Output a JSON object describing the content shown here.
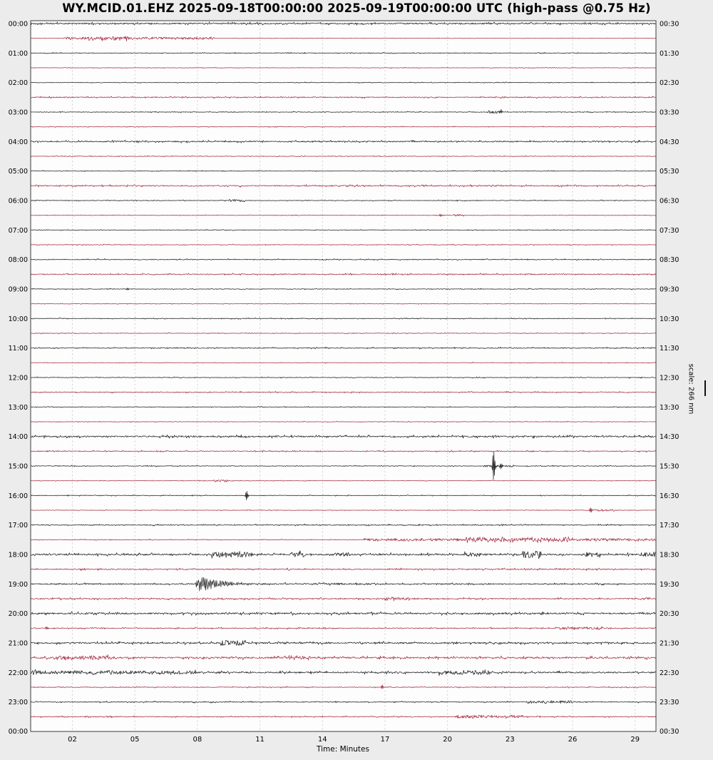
{
  "title": "WY.MCID.01.EHZ 2025-09-18T00:00:00 2025-09-19T00:00:00 UTC (high-pass @0.75 Hz)",
  "chart_data": {
    "type": "line",
    "variant": "helicorder_dayplot",
    "station": "WY.MCID.01.EHZ",
    "time_start_utc": "2025-09-18T00:00:00",
    "time_end_utc": "2025-09-19T00:00:00",
    "filter": "high-pass @0.75 Hz",
    "xlabel": "Time: Minutes",
    "x_range_minutes": [
      0,
      30
    ],
    "minutes_per_row": 30,
    "x_ticks": [
      2,
      5,
      8,
      11,
      14,
      17,
      20,
      23,
      26,
      29
    ],
    "x_tick_labels": [
      "02",
      "05",
      "08",
      "11",
      "14",
      "17",
      "20",
      "23",
      "26",
      "29"
    ],
    "left_time_labels": [
      "00:00",
      "01:00",
      "02:00",
      "03:00",
      "04:00",
      "05:00",
      "06:00",
      "07:00",
      "08:00",
      "09:00",
      "10:00",
      "11:00",
      "12:00",
      "13:00",
      "14:00",
      "15:00",
      "16:00",
      "17:00",
      "18:00",
      "19:00",
      "20:00",
      "21:00",
      "22:00",
      "23:00"
    ],
    "right_time_labels": [
      "00:30",
      "01:30",
      "02:30",
      "03:30",
      "04:30",
      "05:30",
      "06:30",
      "07:30",
      "08:30",
      "09:30",
      "10:30",
      "11:30",
      "12:30",
      "13:30",
      "14:30",
      "15:30",
      "16:30",
      "17:30",
      "18:30",
      "19:30",
      "20:30",
      "21:30",
      "22:30",
      "23:30"
    ],
    "bottom_left_label": "00:00",
    "bottom_right_label": "00:30",
    "scale_label": "scale: 266 nm",
    "scale_nm": 266,
    "grid": true,
    "colors": {
      "trace_black": "#262626",
      "trace_red": "#a93344",
      "grid": "#d6d6d6",
      "frame": "#3c3c3c",
      "plot_bg": "#fdfdfe",
      "page_bg": "#ececec"
    },
    "rows": [
      {
        "t": "00:00",
        "c": "k",
        "n": 1.1,
        "seg": [],
        "ev": []
      },
      {
        "t": "00:30",
        "c": "r",
        "n": 0.25,
        "seg": [
          [
            1.6,
            8.8,
            1.2
          ],
          [
            2.6,
            4.7,
            1.7
          ]
        ],
        "ev": []
      },
      {
        "t": "01:00",
        "c": "k",
        "n": 0.5,
        "seg": [],
        "ev": []
      },
      {
        "t": "01:30",
        "c": "r",
        "n": 0.35,
        "seg": [],
        "ev": []
      },
      {
        "t": "02:00",
        "c": "k",
        "n": 0.45,
        "seg": [],
        "ev": []
      },
      {
        "t": "02:30",
        "c": "r",
        "n": 0.8,
        "seg": [],
        "ev": []
      },
      {
        "t": "03:00",
        "c": "k",
        "n": 0.5,
        "seg": [
          [
            21.9,
            22.6,
            1.2
          ]
        ],
        "ev": [
          [
            "s",
            22.5,
            2.5
          ]
        ]
      },
      {
        "t": "03:30",
        "c": "r",
        "n": 0.4,
        "seg": [],
        "ev": []
      },
      {
        "t": "04:00",
        "c": "k",
        "n": 1.0,
        "seg": [],
        "ev": []
      },
      {
        "t": "04:30",
        "c": "r",
        "n": 0.5,
        "seg": [],
        "ev": []
      },
      {
        "t": "05:00",
        "c": "k",
        "n": 0.45,
        "seg": [],
        "ev": []
      },
      {
        "t": "05:30",
        "c": "r",
        "n": 0.9,
        "seg": [],
        "ev": []
      },
      {
        "t": "06:00",
        "c": "k",
        "n": 0.5,
        "seg": [
          [
            9.5,
            10.3,
            1.4
          ]
        ],
        "ev": []
      },
      {
        "t": "06:30",
        "c": "r",
        "n": 0.4,
        "seg": [
          [
            20.3,
            20.8,
            0.8
          ]
        ],
        "ev": [
          [
            "s",
            19.6,
            1.8
          ]
        ]
      },
      {
        "t": "07:00",
        "c": "k",
        "n": 0.45,
        "seg": [],
        "ev": []
      },
      {
        "t": "07:30",
        "c": "r",
        "n": 0.5,
        "seg": [],
        "ev": []
      },
      {
        "t": "08:00",
        "c": "k",
        "n": 0.6,
        "seg": [],
        "ev": []
      },
      {
        "t": "08:30",
        "c": "r",
        "n": 0.8,
        "seg": [],
        "ev": []
      },
      {
        "t": "09:00",
        "c": "k",
        "n": 0.5,
        "seg": [],
        "ev": [
          [
            "s",
            4.6,
            1.6
          ]
        ]
      },
      {
        "t": "09:30",
        "c": "r",
        "n": 0.4,
        "seg": [],
        "ev": []
      },
      {
        "t": "10:00",
        "c": "k",
        "n": 0.5,
        "seg": [],
        "ev": []
      },
      {
        "t": "10:30",
        "c": "r",
        "n": 0.45,
        "seg": [],
        "ev": []
      },
      {
        "t": "11:00",
        "c": "k",
        "n": 0.65,
        "seg": [],
        "ev": []
      },
      {
        "t": "11:30",
        "c": "r",
        "n": 0.4,
        "seg": [],
        "ev": []
      },
      {
        "t": "12:00",
        "c": "k",
        "n": 0.5,
        "seg": [],
        "ev": []
      },
      {
        "t": "12:30",
        "c": "r",
        "n": 0.7,
        "seg": [],
        "ev": []
      },
      {
        "t": "13:00",
        "c": "k",
        "n": 0.45,
        "seg": [],
        "ev": []
      },
      {
        "t": "13:30",
        "c": "r",
        "n": 0.4,
        "seg": [],
        "ev": []
      },
      {
        "t": "14:00",
        "c": "k",
        "n": 1.2,
        "seg": [],
        "ev": []
      },
      {
        "t": "14:30",
        "c": "r",
        "n": 0.7,
        "seg": [],
        "ev": []
      },
      {
        "t": "15:00",
        "c": "k",
        "n": 0.5,
        "seg": [
          [
            21.8,
            23.2,
            0.8
          ]
        ],
        "ev": [
          [
            "s",
            22.15,
            20
          ],
          [
            "s",
            22.5,
            3.5
          ]
        ]
      },
      {
        "t": "15:30",
        "c": "r",
        "n": 0.4,
        "seg": [
          [
            8.8,
            9.5,
            1.2
          ]
        ],
        "ev": []
      },
      {
        "t": "16:00",
        "c": "k",
        "n": 0.5,
        "seg": [],
        "ev": [
          [
            "s",
            10.3,
            6
          ]
        ]
      },
      {
        "t": "16:30",
        "c": "r",
        "n": 0.4,
        "seg": [
          [
            26.9,
            28.0,
            1.0
          ]
        ],
        "ev": [
          [
            "s",
            26.8,
            3
          ]
        ]
      },
      {
        "t": "17:00",
        "c": "k",
        "n": 0.7,
        "seg": [],
        "ev": []
      },
      {
        "t": "17:30",
        "c": "r",
        "n": 0.5,
        "seg": [
          [
            16,
            30,
            1.3
          ],
          [
            20.9,
            23.2,
            2.2
          ],
          [
            23.6,
            26,
            1.7
          ]
        ],
        "ev": []
      },
      {
        "t": "18:00",
        "c": "k",
        "n": 1.3,
        "seg": [
          [
            8.7,
            10.7,
            2.6
          ],
          [
            12.4,
            13.2,
            2.2
          ],
          [
            14.6,
            15.3,
            1.8
          ],
          [
            20.8,
            21.6,
            2.0
          ],
          [
            23.6,
            24.5,
            3.5
          ],
          [
            26.6,
            27.4,
            2.0
          ],
          [
            29.2,
            30,
            2.4
          ]
        ],
        "ev": []
      },
      {
        "t": "18:30",
        "c": "r",
        "n": 0.9,
        "seg": [],
        "ev": []
      },
      {
        "t": "19:00",
        "c": "k",
        "n": 0.9,
        "seg": [
          [
            13.5,
            16.5,
            0.7
          ]
        ],
        "ev": [
          [
            "q",
            7.85,
            5.5,
            13
          ]
        ]
      },
      {
        "t": "19:30",
        "c": "r",
        "n": 0.95,
        "seg": [
          [
            17,
            18.2,
            1.5
          ]
        ],
        "ev": []
      },
      {
        "t": "20:00",
        "c": "k",
        "n": 1.3,
        "seg": [],
        "ev": []
      },
      {
        "t": "20:30",
        "c": "r",
        "n": 0.7,
        "seg": [
          [
            25.2,
            27.5,
            1.2
          ]
        ],
        "ev": [
          [
            "s",
            0.7,
            2
          ]
        ]
      },
      {
        "t": "21:00",
        "c": "k",
        "n": 1.2,
        "seg": [
          [
            9.1,
            10.3,
            2.6
          ]
        ],
        "ev": []
      },
      {
        "t": "21:30",
        "c": "r",
        "n": 1.3,
        "seg": [
          [
            1.2,
            3.8,
            1.8
          ],
          [
            12.4,
            13.4,
            1.8
          ]
        ],
        "ev": []
      },
      {
        "t": "22:00",
        "c": "k",
        "n": 1.2,
        "seg": [
          [
            0,
            8,
            1.6
          ],
          [
            19.6,
            22.2,
            2.2
          ]
        ],
        "ev": []
      },
      {
        "t": "22:30",
        "c": "r",
        "n": 0.6,
        "seg": [],
        "ev": [
          [
            "s",
            16.8,
            2.5
          ]
        ]
      },
      {
        "t": "23:00",
        "c": "k",
        "n": 0.7,
        "seg": [
          [
            23.8,
            26,
            1.3
          ]
        ],
        "ev": []
      },
      {
        "t": "23:30",
        "c": "r",
        "n": 0.7,
        "seg": [
          [
            20.4,
            23.7,
            1.5
          ]
        ],
        "ev": []
      }
    ]
  }
}
